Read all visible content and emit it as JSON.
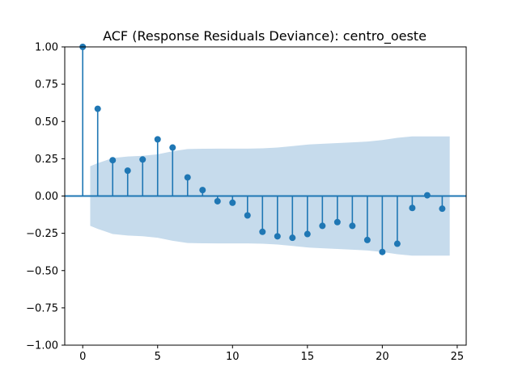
{
  "chart_data": {
    "type": "stem",
    "title": "ACF (Response Residuals Deviance): centro_oeste",
    "xlabel": "",
    "ylabel": "",
    "xlim": [
      -1.2,
      25.6
    ],
    "ylim": [
      -1.0,
      1.0
    ],
    "x_ticks": [
      0,
      5,
      10,
      15,
      20,
      25
    ],
    "y_ticks": [
      -1.0,
      -0.75,
      -0.5,
      -0.25,
      0.0,
      0.25,
      0.5,
      0.75,
      1.0
    ],
    "x_tick_labels": [
      "0",
      "5",
      "10",
      "15",
      "20",
      "25"
    ],
    "y_tick_labels": [
      "−1.00",
      "−0.75",
      "−0.50",
      "−0.25",
      "0.00",
      "0.25",
      "0.50",
      "0.75",
      "1.00"
    ],
    "series": [
      {
        "lags": [
          0,
          1,
          2,
          3,
          4,
          5,
          6,
          7,
          8,
          9,
          10,
          11,
          12,
          13,
          14,
          15,
          16,
          17,
          18,
          19,
          20,
          21,
          22,
          23,
          24
        ],
        "values": [
          1.0,
          0.585,
          0.24,
          0.17,
          0.245,
          0.38,
          0.325,
          0.125,
          0.04,
          -0.035,
          -0.045,
          -0.13,
          -0.24,
          -0.27,
          -0.28,
          -0.255,
          -0.2,
          -0.175,
          -0.2,
          -0.295,
          -0.375,
          -0.32,
          -0.08,
          0.005,
          -0.085
        ]
      }
    ],
    "confidence_band": {
      "lags": [
        0.5,
        1,
        2,
        3,
        4,
        5,
        6,
        7,
        8,
        9,
        10,
        11,
        12,
        13,
        14,
        15,
        16,
        17,
        18,
        19,
        20,
        21,
        22,
        23,
        24,
        24.5
      ],
      "upper": [
        0.2,
        0.22,
        0.255,
        0.265,
        0.27,
        0.28,
        0.3,
        0.315,
        0.317,
        0.318,
        0.318,
        0.318,
        0.32,
        0.325,
        0.335,
        0.345,
        0.35,
        0.355,
        0.36,
        0.365,
        0.375,
        0.39,
        0.4,
        0.4,
        0.4,
        0.4
      ]
    },
    "colors": {
      "stem": "#1f77b4",
      "band": "#c6dbec",
      "zero_line": "#1f77b4"
    },
    "grid": false
  }
}
